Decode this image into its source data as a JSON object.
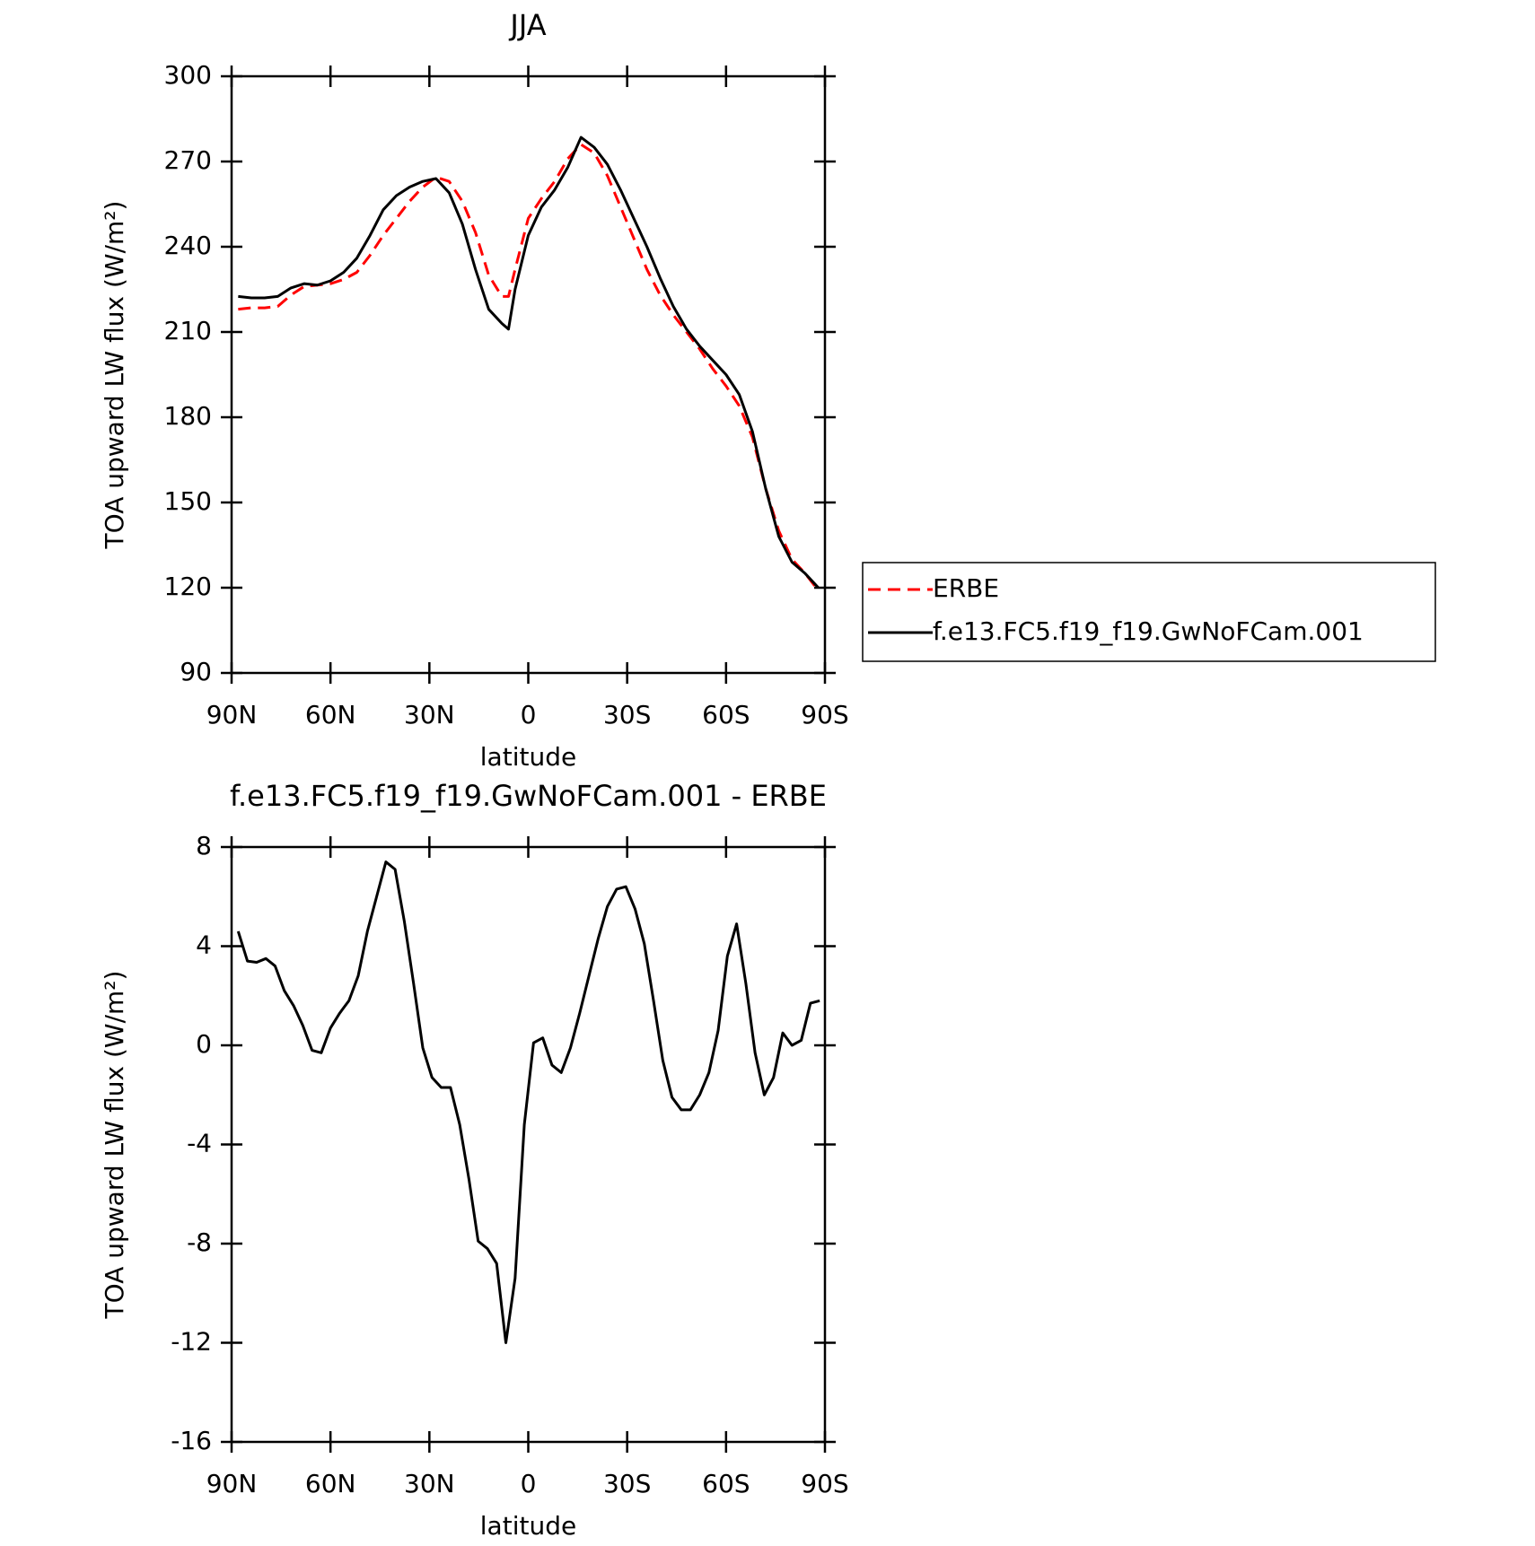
{
  "chart_data": [
    {
      "type": "line",
      "title": "JJA",
      "x_label": "latitude",
      "y_label": "TOA upward LW flux (W/m²)",
      "x": [
        88,
        84,
        80,
        76,
        72,
        68,
        64,
        60,
        56,
        52,
        48,
        44,
        40,
        36,
        32,
        28,
        24,
        20,
        16,
        12,
        8,
        6,
        4,
        0,
        -4,
        -8,
        -12,
        -16,
        -20,
        -24,
        -28,
        -32,
        -36,
        -40,
        -44,
        -48,
        -52,
        -56,
        -60,
        -64,
        -68,
        -72,
        -76,
        -80,
        -84,
        -88
      ],
      "series": [
        {
          "name": "ERBE",
          "color": "#ff0000",
          "dash": true,
          "values": [
            218,
            218.5,
            218.5,
            219,
            223,
            226,
            226.5,
            227,
            228.5,
            231,
            237,
            244,
            250,
            256,
            261,
            264.5,
            263,
            256,
            245,
            230,
            222.5,
            222.5,
            232,
            250,
            257,
            263,
            271,
            276,
            273,
            265,
            254,
            243,
            232,
            223,
            216,
            210,
            204,
            197,
            191,
            184,
            173,
            155,
            140,
            130,
            125,
            119
          ]
        },
        {
          "name": "f.e13.FC5.f19_f19.GwNoFCam.001",
          "color": "#000000",
          "dash": false,
          "values": [
            222.5,
            222,
            222,
            222.5,
            225.5,
            227,
            226.5,
            228,
            231,
            236,
            244,
            253,
            258,
            261,
            263,
            264,
            259,
            248,
            232,
            218,
            213,
            211,
            225,
            244,
            254,
            260,
            268,
            278.5,
            275,
            269,
            260,
            250,
            240,
            229,
            219,
            211,
            205,
            200,
            195,
            188,
            175,
            155,
            138,
            129,
            125,
            120
          ]
        }
      ],
      "xlim": [
        90,
        -90
      ],
      "xticks": [
        {
          "value": 90,
          "label": "90N"
        },
        {
          "value": 60,
          "label": "60N"
        },
        {
          "value": 30,
          "label": "30N"
        },
        0,
        {
          "value": -30,
          "label": "30S"
        },
        {
          "value": -60,
          "label": "60S"
        },
        {
          "value": -90,
          "label": "90S"
        }
      ],
      "ylim": [
        90,
        300
      ],
      "yticks": [
        90,
        120,
        150,
        180,
        210,
        240,
        270,
        300
      ],
      "legend": "outside-right"
    },
    {
      "type": "line",
      "title": "f.e13.FC5.f19_f19.GwNoFCam.001 - ERBE",
      "x_label": "latitude",
      "y_label": "TOA upward LW flux (W/m²)",
      "x": [
        88,
        85.2,
        82.4,
        79.6,
        76.8,
        74,
        71.2,
        68.4,
        65.6,
        62.8,
        60,
        57.2,
        54.4,
        51.6,
        48.8,
        46,
        43.2,
        40.4,
        37.6,
        34.8,
        32,
        29.2,
        26.4,
        23.6,
        20.8,
        18,
        15.2,
        12.4,
        9.6,
        6.8,
        4,
        1.2,
        -1.6,
        -4.4,
        -7.2,
        -10,
        -12.8,
        -15.6,
        -18.4,
        -21.2,
        -24,
        -26.8,
        -29.6,
        -32.4,
        -35.2,
        -38,
        -40.8,
        -43.6,
        -46.4,
        -49.2,
        -52,
        -54.8,
        -57.6,
        -60.4,
        -63.2,
        -66,
        -68.8,
        -71.6,
        -74.4,
        -77.2,
        -80,
        -82.8,
        -85.6,
        -88.4
      ],
      "values": [
        4.6,
        3.4,
        3.35,
        3.5,
        3.2,
        2.2,
        1.6,
        0.8,
        -0.2,
        -0.3,
        0.7,
        1.3,
        1.8,
        2.8,
        4.6,
        6.0,
        7.4,
        7.1,
        5.0,
        2.5,
        -0.1,
        -1.3,
        -1.7,
        -1.7,
        -3.2,
        -5.4,
        -7.9,
        -8.2,
        -8.8,
        -12.0,
        -9.4,
        -3.2,
        0.1,
        0.3,
        -0.8,
        -1.1,
        -0.1,
        1.3,
        2.8,
        4.3,
        5.6,
        6.3,
        6.4,
        5.5,
        4.1,
        1.8,
        -0.6,
        -2.1,
        -2.6,
        -2.6,
        -2.0,
        -1.1,
        0.6,
        3.6,
        4.9,
        2.5,
        -0.3,
        -2.0,
        -1.3,
        0.5,
        0.0,
        0.2,
        1.7,
        1.8
      ],
      "color": "#000000",
      "xlim": [
        90,
        -90
      ],
      "xticks": [
        {
          "value": 90,
          "label": "90N"
        },
        {
          "value": 60,
          "label": "60N"
        },
        {
          "value": 30,
          "label": "30N"
        },
        0,
        {
          "value": -30,
          "label": "30S"
        },
        {
          "value": -60,
          "label": "60S"
        },
        {
          "value": -90,
          "label": "90S"
        }
      ],
      "ylim": [
        -16,
        8
      ],
      "yticks": [
        -16,
        -12,
        -8,
        -4,
        0,
        4,
        8
      ]
    }
  ]
}
